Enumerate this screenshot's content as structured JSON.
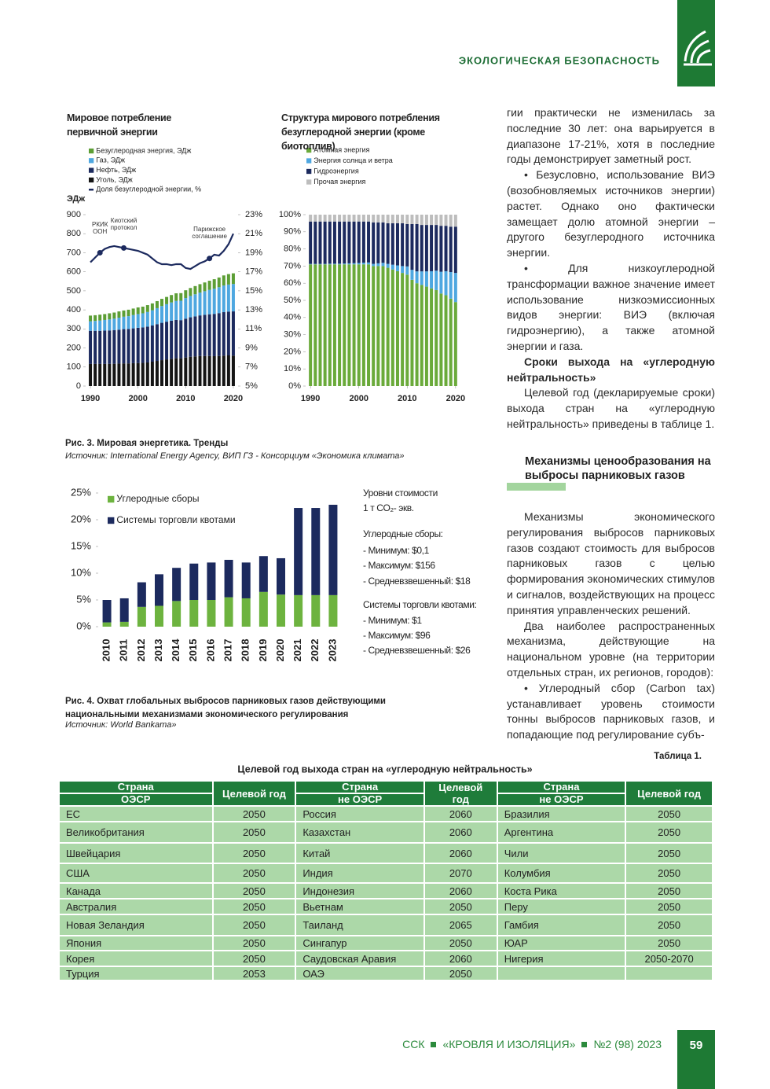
{
  "header": {
    "section": "ЭКОЛОГИЧЕСКАЯ БЕЗОПАСНОСТЬ"
  },
  "chart_data": [
    {
      "type": "bar",
      "stacked": true,
      "title": "Мировое потребление первичной энергии",
      "y_label": "ЭДж",
      "x": [
        1990,
        1991,
        1992,
        1993,
        1994,
        1995,
        1996,
        1997,
        1998,
        1999,
        2000,
        2001,
        2002,
        2003,
        2004,
        2005,
        2006,
        2007,
        2008,
        2009,
        2010,
        2011,
        2012,
        2013,
        2014,
        2015,
        2016,
        2017,
        2018,
        2019,
        2020
      ],
      "xlim": [
        1989,
        2021
      ],
      "xticks": [
        1990,
        2000,
        2010,
        2020
      ],
      "ylim": [
        0,
        900
      ],
      "yticks": [
        0,
        100,
        200,
        300,
        400,
        500,
        600,
        700,
        800,
        900
      ],
      "y2lim": [
        5,
        23
      ],
      "y2ticks": [
        {
          "value": 5,
          "label": "5%"
        },
        {
          "value": 7,
          "label": "7%"
        },
        {
          "value": 9,
          "label": "9%"
        },
        {
          "value": 11,
          "label": "11%"
        },
        {
          "value": 13,
          "label": "13%"
        },
        {
          "value": 15,
          "label": "15%"
        },
        {
          "value": 17,
          "label": "17%"
        },
        {
          "value": 19,
          "label": "19%"
        },
        {
          "value": 21,
          "label": "21%"
        },
        {
          "value": 23,
          "label": "23%"
        }
      ],
      "series": [
        {
          "name": "Безуглеродная энергия, ЭДж",
          "color": "#5c9e35",
          "values": [
            30,
            30,
            31,
            31,
            32,
            32,
            33,
            33,
            34,
            34,
            35,
            35,
            36,
            36,
            37,
            38,
            38,
            39,
            40,
            40,
            41,
            42,
            43,
            44,
            46,
            48,
            50,
            51,
            53,
            55,
            56
          ]
        },
        {
          "name": "Газ, ЭДж",
          "color": "#4ea7e0",
          "values": [
            50,
            52,
            54,
            56,
            58,
            60,
            63,
            65,
            67,
            70,
            72,
            74,
            77,
            80,
            84,
            88,
            92,
            96,
            100,
            102,
            108,
            112,
            116,
            120,
            124,
            128,
            132,
            136,
            140,
            142,
            144
          ]
        },
        {
          "name": "Нефть, ЭДж",
          "color": "#1c2a5e",
          "values": [
            174,
            174,
            174,
            175,
            176,
            177,
            178,
            180,
            181,
            183,
            185,
            186,
            188,
            190,
            193,
            196,
            198,
            200,
            201,
            200,
            204,
            207,
            210,
            213,
            216,
            219,
            222,
            225,
            228,
            230,
            232
          ]
        },
        {
          "name": "Уголь, ЭДж",
          "color": "#141414",
          "values": [
            116,
            116,
            116,
            116,
            116,
            117,
            118,
            119,
            119,
            120,
            121,
            122,
            124,
            128,
            132,
            136,
            140,
            143,
            146,
            146,
            150,
            154,
            156,
            158,
            158,
            158,
            157,
            158,
            160,
            161,
            160
          ]
        },
        {
          "name": "Доля безуглеродной энергии, %",
          "color": "#1c2a5e",
          "axis": "y2",
          "values": [
            18.0,
            18.5,
            19.0,
            19.4,
            19.6,
            19.7,
            19.6,
            19.5,
            19.4,
            19.3,
            19.2,
            19.0,
            18.8,
            18.4,
            18.0,
            17.8,
            17.8,
            17.7,
            17.8,
            17.8,
            17.4,
            17.3,
            17.6,
            17.9,
            18.1,
            18.4,
            18.8,
            18.7,
            19.2,
            19.9,
            21.0
          ]
        }
      ],
      "annotations": [
        {
          "text": "РКИК ООН",
          "x": 1992
        },
        {
          "text": "Киотский протокол",
          "x": 1997
        },
        {
          "text": "Парижское соглашение",
          "x": 2015
        }
      ]
    },
    {
      "type": "bar",
      "stacked": true,
      "title": "Структура мирового потребления безуглеродной энергии (кроме биотоплив)",
      "x": [
        1990,
        1991,
        1992,
        1993,
        1994,
        1995,
        1996,
        1997,
        1998,
        1999,
        2000,
        2001,
        2002,
        2003,
        2004,
        2005,
        2006,
        2007,
        2008,
        2009,
        2010,
        2011,
        2012,
        2013,
        2014,
        2015,
        2016,
        2017,
        2018,
        2019,
        2020
      ],
      "xlim": [
        1989,
        2021
      ],
      "xticks": [
        1990,
        2000,
        2010,
        2020
      ],
      "ylim": [
        0,
        100
      ],
      "yticks": [
        {
          "value": 0,
          "label": "0%"
        },
        {
          "value": 10,
          "label": "10%"
        },
        {
          "value": 20,
          "label": "20%"
        },
        {
          "value": 30,
          "label": "30%"
        },
        {
          "value": 40,
          "label": "40%"
        },
        {
          "value": 50,
          "label": "50%"
        },
        {
          "value": 60,
          "label": "60%"
        },
        {
          "value": 70,
          "label": "70%"
        },
        {
          "value": 80,
          "label": "80%"
        },
        {
          "value": 90,
          "label": "90%"
        },
        {
          "value": 100,
          "label": "100%"
        }
      ],
      "series": [
        {
          "name": "Атомная энергия",
          "color": "#6aaa3a",
          "values": [
            71,
            71,
            71,
            71,
            71,
            71,
            71,
            71,
            71,
            71,
            71,
            71,
            71,
            70,
            70,
            70,
            69,
            68,
            67,
            66,
            65,
            62,
            60,
            59,
            58,
            57,
            56,
            54,
            53,
            51,
            49
          ]
        },
        {
          "name": "Энергия солнца и ветра",
          "color": "#4ea7e0",
          "values": [
            0.3,
            0.3,
            0.3,
            0.3,
            0.4,
            0.4,
            0.4,
            0.5,
            0.6,
            0.7,
            0.8,
            1,
            1.1,
            1.3,
            1.6,
            1.9,
            2.3,
            2.8,
            3.4,
            4,
            4.8,
            5.8,
            6.9,
            7.9,
            8.9,
            10,
            11.3,
            12.7,
            14,
            15.5,
            17
          ]
        },
        {
          "name": "Гидроэнергия",
          "color": "#1c2a5e",
          "values": [
            24.7,
            24.7,
            24.7,
            24.7,
            24.6,
            24.6,
            24.6,
            24.5,
            24.4,
            24.3,
            24.2,
            24,
            23.9,
            24.2,
            23.9,
            23.6,
            23.7,
            24.2,
            24.6,
            25,
            24.7,
            26.7,
            27.6,
            27.1,
            27.1,
            27,
            26.7,
            26.8,
            26.5,
            26.5,
            27
          ]
        },
        {
          "name": "Прочая энергия",
          "color": "#bdbdbd",
          "values": [
            4,
            4,
            4,
            4,
            4,
            4,
            4,
            4,
            4,
            4,
            4,
            4,
            4,
            4.5,
            4.5,
            4.5,
            5,
            5,
            5,
            5,
            5.5,
            5.5,
            5.5,
            6,
            6,
            6,
            6,
            6.5,
            6.5,
            7,
            7
          ]
        }
      ]
    },
    {
      "type": "bar",
      "stacked": true,
      "categories": [
        "2010",
        "2011",
        "2012",
        "2013",
        "2014",
        "2015",
        "2016",
        "2017",
        "2018",
        "2019",
        "2020",
        "2021",
        "2022",
        "2023"
      ],
      "ylim": [
        0,
        25
      ],
      "yticks": [
        {
          "value": 0,
          "label": "0%"
        },
        {
          "value": 5,
          "label": "5%"
        },
        {
          "value": 10,
          "label": "10%"
        },
        {
          "value": 15,
          "label": "15%"
        },
        {
          "value": 20,
          "label": "20%"
        },
        {
          "value": 25,
          "label": "25%"
        }
      ],
      "series": [
        {
          "name": "Углеродные сборы",
          "color": "#6db33f",
          "values": [
            0.8,
            0.9,
            3.7,
            3.9,
            4.8,
            5,
            5,
            5.5,
            5.3,
            6.5,
            6,
            5.9,
            5.9,
            5.9
          ]
        },
        {
          "name": "Системы торговли квотами",
          "color": "#1c2a5e",
          "values": [
            4.2,
            4.4,
            4.6,
            5.9,
            6.2,
            6.8,
            7,
            7,
            6.7,
            6.7,
            6.8,
            16.3,
            16.3,
            16.9
          ]
        }
      ],
      "side_notes": [
        "Уровни стоимости",
        "1 т CO₂- экв.",
        "Углеродные сборы:",
        "- Минимум: $0,1",
        "- Максимум: $156",
        "- Средневзвешенный: $18",
        "Системы торговли квотами:",
        "- Минимум: $1",
        "- Максимум: $96",
        "- Средневзвешенный: $26"
      ]
    }
  ],
  "figures": [
    {
      "caption": "Рис. 3. Мировая энергетика. Тренды",
      "source": "Источник: International Energy Agency, ВИП ГЗ - Консорциум «Экономика климата»"
    },
    {
      "caption": "Рис. 4. Охват глобальных выбросов парниковых газов действующими национальными механизмами экономического регулирования",
      "source": "Источник: World Bankата»"
    }
  ],
  "text": {
    "block1": [
      "гии практически не изменилась за последние 30 лет: она варьируется в диапазоне 17-21%, хотя в последние годы демонстрирует заметный рост.",
      "• Безусловно, использование ВИЭ (возобновляемых источников энергии) растет. Однако оно фактически замещает долю атомной энергии – другого безуглеродного источника энергии.",
      "• Для низкоуглеродной трансформации важное значение имеет использование низкоэмиссионных видов энергии: ВИЭ (включая гидроэнергию), а также атомной энергии и газа."
    ],
    "subheading": "Сроки выхода на «углеродную нейтральность»",
    "block2": "Целевой год (декларируемые сроки) выхода стран на «углеродную нейтральность» приведены в таблице 1.",
    "section_heading": "Механизмы ценообразования на выбросы парниковых газов",
    "block3": [
      "Механизмы экономического регулирования выбросов парниковых газов создают стоимость для выбросов парниковых газов с целью формирования экономических стимулов и сигналов, воздействующих на процесс принятия управленческих решений.",
      "Два наиболее распространенных механизма, действующие на национальном уровне (на территории отдельных стран, их регионов, городов):",
      "• Углеродный сбор (Carbon tax) устанавливает уровень стоимости тонны выбросов парниковых газов, и попадающие под регулирование субъ-"
    ]
  },
  "table": {
    "label": "Таблица 1.",
    "title": "Целевой год выхода стран на «углеродную нейтральность»",
    "header_top": [
      "Страна",
      "Целевой год",
      "Страна",
      "Целевой год",
      "Страна",
      "Целевой год"
    ],
    "header_sub": [
      "ОЭСР",
      "не ОЭСР",
      "не ОЭСР"
    ],
    "rows": [
      [
        "ЕС",
        "2050",
        "Россия",
        "2060",
        "Бразилия",
        "2050"
      ],
      [
        "Великобритания",
        "2050",
        "Казахстан",
        "2060",
        "Аргентина",
        "2050"
      ],
      [
        "Швейцария",
        "2050",
        "Китай",
        "2060",
        "Чили",
        "2050"
      ],
      [
        "США",
        "2050",
        "Индия",
        "2070",
        "Колумбия",
        "2050"
      ],
      [
        "Канада",
        "2050",
        "Индонезия",
        "2060",
        "Коста Рика",
        "2050"
      ],
      [
        "Австралия",
        "2050",
        "Вьетнам",
        "2050",
        "Перу",
        "2050"
      ],
      [
        "Новая Зеландия",
        "2050",
        "Таиланд",
        "2065",
        "Гамбия",
        "2050"
      ],
      [
        "Япония",
        "2050",
        "Сингапур",
        "2050",
        "ЮАР",
        "2050"
      ],
      [
        "Корея",
        "2050",
        "Саудовская Аравия",
        "2060",
        "Нигерия",
        "2050-2070"
      ],
      [
        "Турция",
        "2053",
        "ОАЭ",
        "2050"
      ]
    ]
  },
  "footer": {
    "publisher": "ССК",
    "journal": "«КРОВЛЯ И ИЗОЛЯЦИЯ»",
    "issue": "№2 (98) 2023",
    "page": "59"
  }
}
